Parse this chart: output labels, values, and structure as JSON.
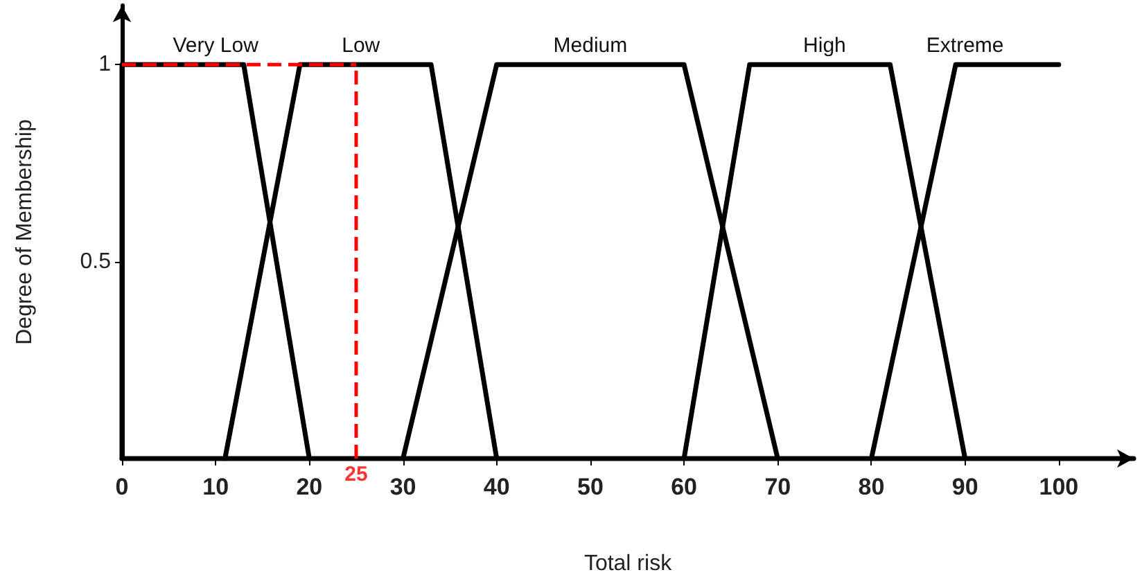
{
  "chart_data": {
    "type": "line",
    "xlabel": "Total risk",
    "ylabel": "Degree of Membership",
    "xlim": [
      0,
      108
    ],
    "xticks": [
      0,
      10,
      20,
      30,
      40,
      50,
      60,
      70,
      80,
      90,
      100
    ],
    "ylim": [
      0,
      1.15
    ],
    "yticks": [
      0.5,
      1
    ],
    "grid": false,
    "legend": false,
    "marker": "none",
    "line_style": "solid",
    "series": [
      {
        "name": "Very Low",
        "color": "#000000",
        "x": [
          0,
          0,
          13,
          20
        ],
        "values": [
          0,
          1,
          1,
          0
        ]
      },
      {
        "name": "Low",
        "color": "#000000",
        "x": [
          11,
          19,
          33,
          40
        ],
        "values": [
          0,
          1,
          1,
          0
        ]
      },
      {
        "name": "Medium",
        "color": "#000000",
        "x": [
          30,
          40,
          60,
          70
        ],
        "values": [
          0,
          1,
          1,
          0
        ]
      },
      {
        "name": "High",
        "color": "#000000",
        "x": [
          60,
          67,
          82,
          90
        ],
        "values": [
          0,
          1,
          1,
          0
        ]
      },
      {
        "name": "Extreme",
        "color": "#000000",
        "x": [
          80,
          89,
          100
        ],
        "values": [
          0,
          1,
          1
        ]
      }
    ],
    "ref_lines": [
      {
        "axis": "x",
        "value": 25,
        "label": "25",
        "color": "#ff0000",
        "line_style": "dashed"
      },
      {
        "axis": "y",
        "value": 1,
        "color": "#ff0000",
        "line_style": "dashed"
      }
    ]
  }
}
